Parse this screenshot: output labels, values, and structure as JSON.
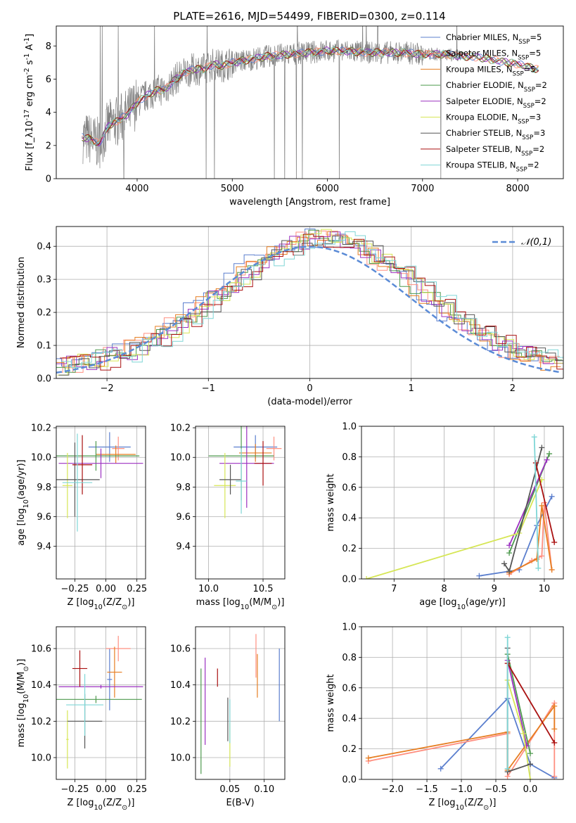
{
  "title": "PLATE=2616, MJD=54499, FIBERID=0300, z=0.114",
  "colors": {
    "chabrier_miles": "#5b7fce",
    "salpeter_miles": "#ff8f80",
    "kroupa_miles": "#e67e22",
    "chabrier_elodie": "#4e9a4e",
    "salpeter_elodie": "#9b30c0",
    "kroupa_elodie": "#d6e655",
    "chabrier_stelib": "#555555",
    "salpeter_stelib": "#aa1111",
    "kroupa_stelib": "#7fd6d6",
    "data": "#808080",
    "normal": "#5b8bd6",
    "magenta": "#cc22cc"
  },
  "chart_data": [
    {
      "id": "spectrum",
      "type": "line",
      "xlabel": "wavelength [Angstrom, rest frame]",
      "ylabel": "Flux [f_λ10^-17 erg cm^-2 s^-1 A^-1]",
      "xlim": [
        3150,
        8480
      ],
      "ylim": [
        0,
        9.2
      ],
      "xticks": [
        4000,
        5000,
        6000,
        7000,
        8000
      ],
      "yticks": [
        0,
        2,
        4,
        6,
        8
      ],
      "legend_position": "top-right",
      "legend": [
        {
          "label": "Chabrier MILES, N_SSP=5",
          "color": "chabrier_miles"
        },
        {
          "label": "Salpeter MILES, N_SSP=5",
          "color": "salpeter_miles"
        },
        {
          "label": "Kroupa MILES, N_SSP=5",
          "color": "kroupa_miles"
        },
        {
          "label": "Chabrier ELODIE, N_SSP=2",
          "color": "chabrier_elodie"
        },
        {
          "label": "Salpeter ELODIE, N_SSP=2",
          "color": "salpeter_elodie"
        },
        {
          "label": "Kroupa ELODIE, N_SSP=3",
          "color": "kroupa_elodie"
        },
        {
          "label": "Chabrier STELIB, N_SSP=3",
          "color": "chabrier_stelib"
        },
        {
          "label": "Salpeter STELIB, N_SSP=2",
          "color": "salpeter_stelib"
        },
        {
          "label": "Kroupa STELIB, N_SSP=2",
          "color": "kroupa_stelib"
        }
      ],
      "model_continuum": {
        "x": [
          3420,
          3500,
          3600,
          3700,
          3800,
          3900,
          4000,
          4100,
          4200,
          4300,
          4400,
          4500,
          4600,
          4700,
          4800,
          4900,
          5000,
          5200,
          5400,
          5600,
          5800,
          6000,
          6200,
          6400,
          6600,
          6800,
          7000,
          7200,
          7400,
          7600,
          7800,
          8000,
          8200
        ],
        "y": [
          2.5,
          2.4,
          2.1,
          3.2,
          3.5,
          3.9,
          4.6,
          5.0,
          5.3,
          5.4,
          6.0,
          6.4,
          6.6,
          6.6,
          6.9,
          6.8,
          7.0,
          7.2,
          7.4,
          7.5,
          7.6,
          7.7,
          7.7,
          7.6,
          7.6,
          7.6,
          7.5,
          7.5,
          7.4,
          7.3,
          7.1,
          6.9,
          6.6
        ]
      }
    },
    {
      "id": "residuals",
      "type": "bar",
      "xlabel": "(data-model)/error",
      "ylabel": "Normed distribution",
      "xlim": [
        -2.5,
        2.5
      ],
      "ylim": [
        0,
        0.46
      ],
      "xticks": [
        -2,
        -1,
        0,
        1,
        2
      ],
      "yticks": [
        0.0,
        0.1,
        0.2,
        0.3,
        0.4
      ],
      "legend_position": "top-right",
      "legend": [
        {
          "label": "𝒩(0,1)",
          "color": "normal"
        }
      ]
    },
    {
      "id": "age_vs_Z",
      "type": "scatter",
      "xlabel": "Z [log10(Z/Z⊙)]",
      "ylabel": "age  [log10(age/yr)]",
      "xlim": [
        -0.4,
        0.32
      ],
      "ylim": [
        9.18,
        10.21
      ],
      "xticks": [
        -0.25,
        0.0,
        0.25
      ],
      "yticks": [
        9.4,
        9.6,
        9.8,
        10.0,
        10.2
      ],
      "points": [
        {
          "color": "chabrier_miles",
          "x": 0.03,
          "y": 10.07,
          "xerr": 0.17,
          "yerr": 0.1
        },
        {
          "color": "salpeter_miles",
          "x": 0.1,
          "y": 10.06,
          "xerr": 0.05,
          "yerr": 0.08
        },
        {
          "color": "kroupa_miles",
          "x": 0.08,
          "y": 10.02,
          "xerr": 0.16,
          "yerr": 0.06
        },
        {
          "color": "chabrier_elodie",
          "x": -0.08,
          "y": 10.01,
          "xerr": 0.35,
          "yerr": 0.1
        },
        {
          "color": "salpeter_elodie",
          "x": -0.04,
          "y": 9.96,
          "xerr": 0.34,
          "yerr": 0.1
        },
        {
          "color": "kroupa_elodie",
          "x": -0.31,
          "y": 9.81,
          "xerr": 0.04,
          "yerr": 0.22
        },
        {
          "color": "chabrier_stelib",
          "x": -0.25,
          "y": 9.85,
          "xerr": 0.2,
          "yerr": 0.25
        },
        {
          "color": "salpeter_stelib",
          "x": -0.19,
          "y": 9.95,
          "xerr": 0.08,
          "yerr": 0.2
        },
        {
          "color": "kroupa_stelib",
          "x": -0.23,
          "y": 9.83,
          "xerr": 0.12,
          "yerr": 0.33
        }
      ]
    },
    {
      "id": "age_vs_mass",
      "type": "scatter",
      "xlabel": "mass [log10(M/M⊙)]",
      "ylabel": "",
      "xlim": [
        9.88,
        10.7
      ],
      "ylim": [
        9.18,
        10.21
      ],
      "xticks": [
        10.0,
        10.5
      ],
      "yticks": [
        9.4,
        9.6,
        9.8,
        10.0,
        10.2
      ],
      "points": [
        {
          "color": "chabrier_miles",
          "x": 10.43,
          "y": 10.07,
          "xerr": 0.2,
          "yerr": 0.08
        },
        {
          "color": "salpeter_miles",
          "x": 10.6,
          "y": 10.06,
          "xerr": 0.07,
          "yerr": 0.08
        },
        {
          "color": "kroupa_miles",
          "x": 10.43,
          "y": 10.03,
          "xerr": 0.15,
          "yerr": 0.06
        },
        {
          "color": "chabrier_elodie",
          "x": 10.3,
          "y": 10.01,
          "xerr": 0.3,
          "yerr": 0.3
        },
        {
          "color": "salpeter_elodie",
          "x": 10.35,
          "y": 9.96,
          "xerr": 0.25,
          "yerr": 0.3
        },
        {
          "color": "kroupa_elodie",
          "x": 10.15,
          "y": 9.81,
          "xerr": 0.1,
          "yerr": 0.22
        },
        {
          "color": "chabrier_stelib",
          "x": 10.2,
          "y": 9.85,
          "xerr": 0.1,
          "yerr": 0.1
        },
        {
          "color": "salpeter_stelib",
          "x": 10.5,
          "y": 9.96,
          "xerr": 0.08,
          "yerr": 0.15
        },
        {
          "color": "kroupa_stelib",
          "x": 10.3,
          "y": 9.84,
          "xerr": 0.05,
          "yerr": 0.22
        }
      ]
    },
    {
      "id": "weight_vs_age",
      "type": "line",
      "xlabel": "age  [log10(age/yr)]",
      "ylabel": "mass weight",
      "xlim": [
        6.35,
        10.38
      ],
      "ylim": [
        0.0,
        1.0
      ],
      "xticks": [
        7,
        8,
        9,
        10
      ],
      "yticks": [
        0.0,
        0.2,
        0.4,
        0.6,
        0.8,
        1.0
      ],
      "series": [
        {
          "color": "chabrier_miles",
          "x": [
            8.7,
            9.5,
            9.85,
            10.15
          ],
          "y": [
            0.02,
            0.06,
            0.35,
            0.54
          ]
        },
        {
          "color": "salpeter_miles",
          "x": [
            9.3,
            9.75,
            9.95,
            10.0,
            10.15
          ],
          "y": [
            0.03,
            0.12,
            0.15,
            0.5,
            0.06
          ]
        },
        {
          "color": "kroupa_miles",
          "x": [
            9.3,
            9.85,
            9.95,
            10.15
          ],
          "y": [
            0.04,
            0.13,
            0.48,
            0.06
          ]
        },
        {
          "color": "chabrier_elodie",
          "x": [
            9.3,
            10.1
          ],
          "y": [
            0.17,
            0.82
          ]
        },
        {
          "color": "salpeter_elodie",
          "x": [
            9.3,
            10.05
          ],
          "y": [
            0.22,
            0.78
          ]
        },
        {
          "color": "kroupa_elodie",
          "x": [
            6.45,
            9.5,
            9.95
          ],
          "y": [
            0.0,
            0.3,
            0.65
          ]
        },
        {
          "color": "chabrier_stelib",
          "x": [
            9.2,
            9.3,
            9.95
          ],
          "y": [
            0.1,
            0.05,
            0.86
          ]
        },
        {
          "color": "salpeter_stelib",
          "x": [
            9.83,
            10.2
          ],
          "y": [
            0.76,
            0.24
          ]
        },
        {
          "color": "kroupa_stelib",
          "x": [
            9.8,
            9.88
          ],
          "y": [
            0.93,
            0.07
          ]
        }
      ]
    },
    {
      "id": "mass_vs_Z",
      "type": "scatter",
      "xlabel": "Z [log10(Z/Z⊙)]",
      "ylabel": "mass [log10(M/M⊙)]",
      "xlim": [
        -0.4,
        0.32
      ],
      "ylim": [
        9.88,
        10.72
      ],
      "xticks": [
        -0.25,
        0.0,
        0.25
      ],
      "yticks": [
        10.0,
        10.2,
        10.4,
        10.6
      ],
      "points": [
        {
          "color": "chabrier_miles",
          "x": 0.03,
          "y": 10.43,
          "xerr": 0.02,
          "yerr": 0.17
        },
        {
          "color": "salpeter_miles",
          "x": 0.1,
          "y": 10.6,
          "xerr": 0.1,
          "yerr": 0.07
        },
        {
          "color": "kroupa_miles",
          "x": 0.07,
          "y": 10.47,
          "xerr": 0.06,
          "yerr": 0.14
        },
        {
          "color": "chabrier_elodie",
          "x": -0.08,
          "y": 10.32,
          "xerr": 0.37,
          "yerr": 0.02
        },
        {
          "color": "salpeter_elodie",
          "x": -0.04,
          "y": 10.39,
          "xerr": 0.34,
          "yerr": 0.01
        },
        {
          "color": "kroupa_elodie",
          "x": -0.31,
          "y": 10.1,
          "xerr": 0.01,
          "yerr": 0.16
        },
        {
          "color": "chabrier_stelib",
          "x": -0.17,
          "y": 10.2,
          "xerr": 0.14,
          "yerr": 0.15
        },
        {
          "color": "salpeter_stelib",
          "x": -0.21,
          "y": 10.49,
          "xerr": 0.06,
          "yerr": 0.1
        },
        {
          "color": "kroupa_stelib",
          "x": -0.17,
          "y": 10.29,
          "xerr": 0.15,
          "yerr": 0.17
        }
      ]
    },
    {
      "id": "mass_vs_ebv",
      "type": "scatter",
      "xlabel": "E(B-V)",
      "ylabel": "",
      "xlim": [
        0.0,
        0.13
      ],
      "ylim": [
        9.88,
        10.72
      ],
      "xticks": [
        0.05,
        0.1
      ],
      "yticks": [
        10.0,
        10.2,
        10.4,
        10.6
      ],
      "points": [
        {
          "color": "chabrier_miles",
          "x": 0.122,
          "y": 10.4,
          "xerr": 0.0,
          "yerr": 0.2
        },
        {
          "color": "salpeter_miles",
          "x": 0.088,
          "y": 10.56,
          "xerr": 0.0,
          "yerr": 0.12
        },
        {
          "color": "kroupa_miles",
          "x": 0.09,
          "y": 10.45,
          "xerr": 0.0,
          "yerr": 0.12
        },
        {
          "color": "chabrier_elodie",
          "x": 0.008,
          "y": 10.2,
          "xerr": 0.0,
          "yerr": 0.29
        },
        {
          "color": "salpeter_elodie",
          "x": 0.014,
          "y": 10.31,
          "xerr": 0.0,
          "yerr": 0.24
        },
        {
          "color": "kroupa_elodie",
          "x": 0.05,
          "y": 10.07,
          "xerr": 0.0,
          "yerr": 0.12
        },
        {
          "color": "chabrier_stelib",
          "x": 0.047,
          "y": 10.21,
          "xerr": 0.0,
          "yerr": 0.12
        },
        {
          "color": "salpeter_stelib",
          "x": 0.032,
          "y": 10.44,
          "xerr": 0.0,
          "yerr": 0.05
        },
        {
          "color": "kroupa_stelib",
          "x": 0.05,
          "y": 10.2,
          "xerr": 0.0,
          "yerr": 0.12
        }
      ]
    },
    {
      "id": "weight_vs_Z",
      "type": "line",
      "xlabel": "Z [log10(Z/Z⊙)]",
      "ylabel": "mass weight",
      "xlim": [
        -2.45,
        0.48
      ],
      "ylim": [
        0.0,
        1.0
      ],
      "xticks": [
        -2.0,
        -1.5,
        -1.0,
        -0.5,
        0.0
      ],
      "yticks": [
        0.0,
        0.2,
        0.4,
        0.6,
        0.8,
        1.0
      ],
      "series": [
        {
          "color": "chabrier_miles",
          "x": [
            -1.3,
            -0.33,
            0.0,
            0.35
          ],
          "y": [
            0.07,
            0.53,
            0.1,
            0.01
          ]
        },
        {
          "color": "salpeter_miles",
          "x": [
            -2.35,
            -0.33,
            -0.33,
            0.35,
            0.35
          ],
          "y": [
            0.12,
            0.3,
            0.02,
            0.5,
            0.02
          ]
        },
        {
          "color": "kroupa_miles",
          "x": [
            -2.35,
            -0.33,
            -0.33,
            0.35,
            0.35
          ],
          "y": [
            0.14,
            0.31,
            0.06,
            0.48,
            0.33
          ]
        },
        {
          "color": "chabrier_elodie",
          "x": [
            -0.33,
            0.0
          ],
          "y": [
            0.82,
            0.17
          ]
        },
        {
          "color": "salpeter_elodie",
          "x": [
            -0.33,
            -0.05
          ],
          "y": [
            0.78,
            0.22
          ]
        },
        {
          "color": "kroupa_elodie",
          "x": [
            -0.33,
            -0.1,
            0.0
          ],
          "y": [
            0.65,
            0.3,
            0.0
          ]
        },
        {
          "color": "chabrier_stelib",
          "x": [
            -0.33,
            -0.33,
            0.0
          ],
          "y": [
            0.86,
            0.05,
            0.1
          ]
        },
        {
          "color": "salpeter_stelib",
          "x": [
            -0.33,
            0.35
          ],
          "y": [
            0.76,
            0.24
          ]
        },
        {
          "color": "kroupa_stelib",
          "x": [
            -0.33,
            -0.33
          ],
          "y": [
            0.93,
            0.07
          ]
        }
      ]
    }
  ]
}
